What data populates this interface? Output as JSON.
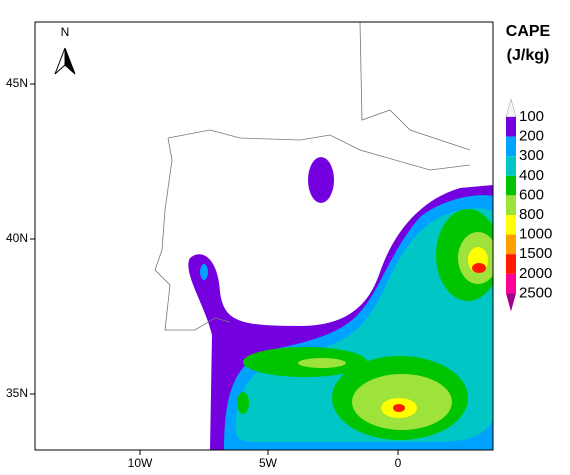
{
  "map": {
    "north_label": "N",
    "legend": {
      "title": "CAPE",
      "units": "(J/kg)",
      "levels": [
        100,
        200,
        300,
        400,
        600,
        800,
        1000,
        1500,
        2000,
        2500
      ],
      "colors": [
        "#f4f4f4",
        "#7400e0",
        "#00a2ff",
        "#00c6c6",
        "#00c400",
        "#9ee33c",
        "#ffff00",
        "#ffa000",
        "#ff1a00",
        "#ff0096",
        "#a0008c"
      ]
    },
    "lat_labels": [
      "45N",
      "40N",
      "35N"
    ],
    "lon_labels": [
      "10W",
      "5W",
      "0"
    ]
  }
}
